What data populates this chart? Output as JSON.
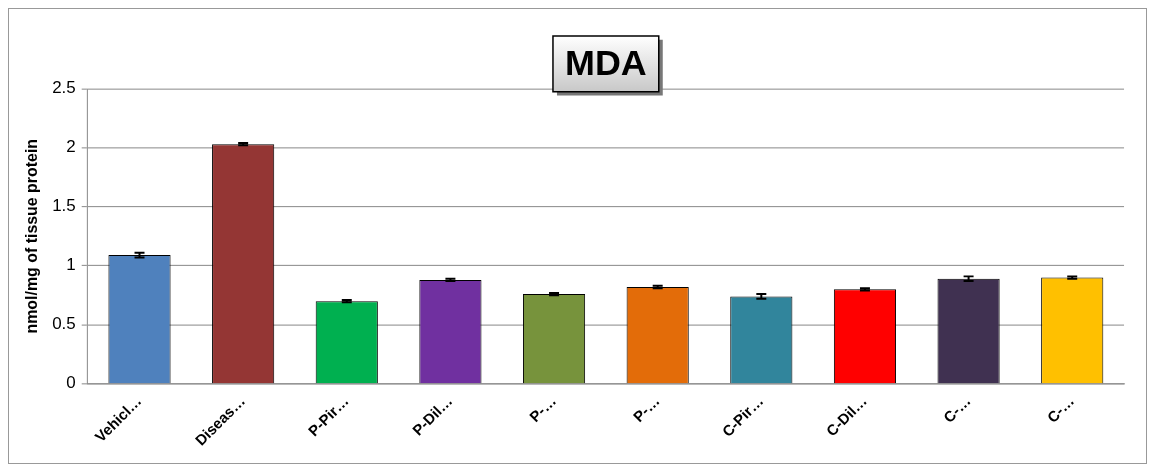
{
  "chart_data": {
    "type": "bar",
    "title": "MDA",
    "ylabel": "nmol/mg of tissue protein",
    "categories": [
      "Vehicl…",
      "Diseas…",
      "P-Pir…",
      "P-Dil…",
      "P-…",
      "P-…",
      "C-Pir…",
      "C-Dil…",
      "C-…",
      "C-…"
    ],
    "values": [
      1.09,
      2.03,
      0.7,
      0.88,
      0.76,
      0.82,
      0.74,
      0.8,
      0.89,
      0.9
    ],
    "errors": [
      0.02,
      0.01,
      0.01,
      0.01,
      0.01,
      0.01,
      0.02,
      0.01,
      0.02,
      0.01
    ],
    "colors": [
      "#4f81bd",
      "#943634",
      "#00b050",
      "#7030a0",
      "#77933c",
      "#e36c09",
      "#31859c",
      "#ff0000",
      "#403151",
      "#ffc000"
    ],
    "ylim": [
      0,
      2.5
    ],
    "yticks": [
      0,
      0.5,
      1,
      1.5,
      2,
      2.5
    ],
    "grid": "y",
    "legend": false
  }
}
